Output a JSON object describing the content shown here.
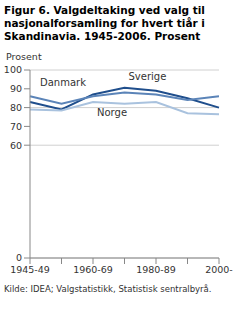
{
  "chart_data": {
    "type": "line",
    "title": "Figur 6. Valgdeltaking ved valg til nasjonalforsamling for hvert tiår i Skandinavia. 1945-2006. Prosent",
    "ylabel": "Prosent",
    "source": "Kilde: IDEA; Valgstatistikk, Statistisk sentralbyrå.",
    "categories": [
      "1945-49",
      null,
      "1960-69",
      null,
      "1980-89",
      null,
      "2000-"
    ],
    "series": [
      {
        "name": "Sverige",
        "color": "#1f4e8c",
        "values": [
          83,
          79,
          87,
          90.5,
          89,
          85,
          80
        ]
      },
      {
        "name": "Danmark",
        "color": "#5b84b8",
        "values": [
          86,
          82,
          86,
          88,
          87,
          84,
          86
        ]
      },
      {
        "name": "Norge",
        "color": "#a9c2de",
        "values": [
          79,
          78.5,
          83,
          82,
          83,
          77,
          76.5
        ]
      }
    ],
    "ylim": [
      0,
      100
    ],
    "yticks": [
      0,
      60,
      70,
      80,
      90,
      100
    ],
    "grid": true
  }
}
